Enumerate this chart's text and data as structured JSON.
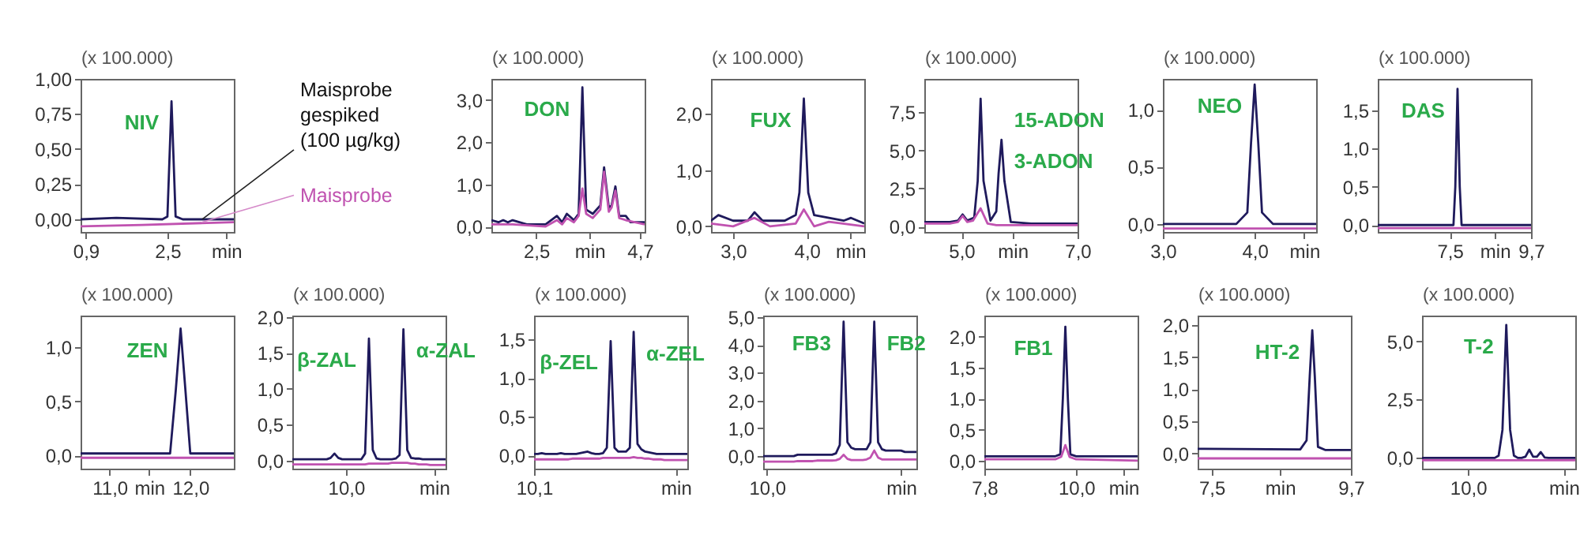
{
  "chart_data": [
    {
      "type": "line",
      "ylabel": "(x 100.000)",
      "xlim": [
        0.8,
        3.8
      ],
      "ylim": [
        -0.09,
        1.0
      ],
      "xticks": [
        {
          "value": 0.9,
          "label": "0,9"
        },
        {
          "value": 2.5,
          "label": "2,5"
        },
        {
          "value": 3.65,
          "label": "min"
        }
      ],
      "yticks": [
        {
          "value": 0,
          "label": "0,00"
        },
        {
          "value": 0.25,
          "label": "0,25"
        },
        {
          "value": 0.5,
          "label": "0,50"
        },
        {
          "value": 0.75,
          "label": "0,75"
        },
        {
          "value": 1,
          "label": "1,00"
        }
      ],
      "annotations": [
        "NIV"
      ],
      "series": [
        {
          "name": "Maisprobe\ngespiked\n(100 µg/kg)",
          "color": "#1f1a5c",
          "x": [
            0.8,
            1.5,
            2.4,
            2.5,
            2.58,
            2.66,
            2.8,
            3.8
          ],
          "values": [
            0.0,
            0.01,
            0.0,
            0.02,
            0.84,
            0.02,
            0.0,
            0.0
          ]
        },
        {
          "name": "Maisprobe",
          "color": "#c052b0",
          "x": [
            0.8,
            2.0,
            3.8
          ],
          "values": [
            -0.05,
            -0.04,
            -0.02
          ]
        }
      ]
    },
    {
      "type": "line",
      "ylabel": "(x 100.000)",
      "xlim": [
        1.55,
        4.8
      ],
      "ylim": [
        -0.13,
        3.5
      ],
      "xticks": [
        {
          "value": 2.5,
          "label": "2,5"
        },
        {
          "value": 3.63,
          "label": "min"
        },
        {
          "value": 4.7,
          "label": "4,7"
        }
      ],
      "yticks": [
        {
          "value": 0,
          "label": "0,0"
        },
        {
          "value": 1,
          "label": "1,0"
        },
        {
          "value": 2,
          "label": "2,0"
        },
        {
          "value": 3,
          "label": "3,0"
        }
      ],
      "annotations": [
        "DON"
      ],
      "series": [
        {
          "color": "#1f1a5c",
          "x": [
            1.55,
            1.7,
            1.8,
            1.9,
            2.0,
            2.3,
            2.7,
            2.94,
            3.05,
            3.15,
            3.3,
            3.4,
            3.48,
            3.56,
            3.7,
            3.86,
            3.94,
            4.04,
            4.1,
            4.18,
            4.26,
            4.4,
            4.5,
            4.8
          ],
          "values": [
            0.15,
            0.1,
            0.15,
            0.1,
            0.15,
            0.05,
            0.05,
            0.25,
            0.1,
            0.3,
            0.15,
            0.3,
            3.3,
            0.4,
            0.3,
            0.5,
            1.4,
            0.45,
            0.5,
            0.95,
            0.25,
            0.25,
            0.1,
            0.1
          ]
        },
        {
          "color": "#c052b0",
          "x": [
            1.55,
            2.0,
            2.7,
            2.94,
            3.05,
            3.15,
            3.3,
            3.4,
            3.48,
            3.56,
            3.7,
            3.86,
            3.94,
            4.04,
            4.1,
            4.18,
            4.26,
            4.4,
            4.8
          ],
          "values": [
            0.05,
            0.05,
            0.0,
            0.15,
            0.05,
            0.2,
            0.1,
            0.25,
            0.9,
            0.3,
            0.2,
            0.4,
            1.3,
            0.35,
            0.45,
            0.85,
            0.2,
            0.15,
            0.05
          ]
        }
      ]
    },
    {
      "type": "line",
      "ylabel": "(x 100.000)",
      "xlim": [
        2.7,
        4.78
      ],
      "ylim": [
        -0.1,
        2.62
      ],
      "xticks": [
        {
          "value": 3.0,
          "label": "3,0"
        },
        {
          "value": 4.0,
          "label": "4,0"
        },
        {
          "value": 4.59,
          "label": "min"
        }
      ],
      "yticks": [
        {
          "value": 0,
          "label": "0,0"
        },
        {
          "value": 1,
          "label": "1,0"
        },
        {
          "value": 2,
          "label": "2,0"
        }
      ],
      "annotations": [
        "FUX"
      ],
      "series": [
        {
          "color": "#1f1a5c",
          "x": [
            2.7,
            2.8,
            3.0,
            3.2,
            3.29,
            3.4,
            3.7,
            3.85,
            3.9,
            3.96,
            4.02,
            4.1,
            4.3,
            4.5,
            4.6,
            4.78
          ],
          "values": [
            0.1,
            0.2,
            0.1,
            0.1,
            0.25,
            0.1,
            0.1,
            0.2,
            0.6,
            2.27,
            0.6,
            0.2,
            0.15,
            0.1,
            0.15,
            0.05
          ]
        },
        {
          "color": "#c052b0",
          "x": [
            2.7,
            3.0,
            3.29,
            3.5,
            3.85,
            3.96,
            4.1,
            4.3,
            4.78
          ],
          "values": [
            0.05,
            0.0,
            0.15,
            0.0,
            0.05,
            0.3,
            0.0,
            0.08,
            0.0
          ]
        }
      ]
    },
    {
      "type": "line",
      "ylabel": "(x 100.000)",
      "xlim": [
        4.36,
        7.0
      ],
      "ylim": [
        -0.35,
        9.7
      ],
      "xticks": [
        {
          "value": 5.0,
          "label": "5,0"
        },
        {
          "value": 5.88,
          "label": "min"
        },
        {
          "value": 7.0,
          "label": "7,0"
        }
      ],
      "yticks": [
        {
          "value": 0,
          "label": "0,0"
        },
        {
          "value": 2.5,
          "label": "2,5"
        },
        {
          "value": 5,
          "label": "5,0"
        },
        {
          "value": 7.5,
          "label": "7,5"
        }
      ],
      "annotations": [
        "15-ADON",
        "3-ADON"
      ],
      "series": [
        {
          "color": "#1f1a5c",
          "x": [
            4.36,
            4.8,
            4.94,
            5.02,
            5.1,
            5.22,
            5.28,
            5.33,
            5.38,
            5.5,
            5.6,
            5.64,
            5.69,
            5.74,
            5.85,
            6.2,
            7.0
          ],
          "values": [
            0.3,
            0.3,
            0.4,
            0.8,
            0.4,
            0.6,
            3.0,
            8.4,
            3.0,
            0.4,
            1.0,
            3.5,
            5.7,
            3.0,
            0.3,
            0.2,
            0.2
          ]
        },
        {
          "color": "#c052b0",
          "x": [
            4.36,
            4.8,
            4.94,
            5.02,
            5.1,
            5.2,
            5.33,
            5.45,
            5.6,
            7.0
          ],
          "values": [
            0.2,
            0.2,
            0.3,
            0.7,
            0.3,
            0.4,
            1.2,
            0.2,
            0.1,
            0.1
          ]
        }
      ]
    },
    {
      "type": "line",
      "ylabel": "(x 100.000)",
      "xlim": [
        3.0,
        4.67
      ],
      "ylim": [
        -0.07,
        1.27
      ],
      "xticks": [
        {
          "value": 3.0,
          "label": "3,0"
        },
        {
          "value": 4.0,
          "label": "4,0"
        },
        {
          "value": 4.54,
          "label": "min"
        }
      ],
      "yticks": [
        {
          "value": 0,
          "label": "0,0"
        },
        {
          "value": 0.5,
          "label": "0,5"
        },
        {
          "value": 1,
          "label": "1,0"
        }
      ],
      "annotations": [
        "NEO"
      ],
      "series": [
        {
          "color": "#1f1a5c",
          "x": [
            3.0,
            3.8,
            3.92,
            3.96,
            4.0,
            4.04,
            4.08,
            4.2,
            4.67
          ],
          "values": [
            0.0,
            0.0,
            0.1,
            0.7,
            1.22,
            0.7,
            0.1,
            0.0,
            0.0
          ]
        },
        {
          "color": "#c052b0",
          "x": [
            3.0,
            4.67
          ],
          "values": [
            -0.04,
            -0.04
          ]
        }
      ]
    },
    {
      "type": "line",
      "ylabel": "(x 100.000)",
      "xlim": [
        5.55,
        9.7
      ],
      "ylim": [
        -0.09,
        1.91
      ],
      "xticks": [
        {
          "value": 7.5,
          "label": "7,5"
        },
        {
          "value": 8.72,
          "label": "min"
        },
        {
          "value": 9.7,
          "label": "9,7"
        }
      ],
      "yticks": [
        {
          "value": 0,
          "label": "0,0"
        },
        {
          "value": 0.5,
          "label": "0,5"
        },
        {
          "value": 1,
          "label": "1,0"
        },
        {
          "value": 1.5,
          "label": "1,5"
        }
      ],
      "annotations": [
        "DAS"
      ],
      "series": [
        {
          "color": "#1f1a5c",
          "x": [
            5.55,
            7.6,
            7.65,
            7.71,
            7.77,
            7.82,
            9.7
          ],
          "values": [
            0.0,
            0.0,
            0.5,
            1.78,
            0.5,
            0.0,
            0.0
          ]
        },
        {
          "color": "#c052b0",
          "x": [
            5.55,
            9.7
          ],
          "values": [
            -0.04,
            -0.04
          ]
        }
      ]
    },
    {
      "type": "line",
      "ylabel": "(x 100.000)",
      "xlim": [
        10.64,
        12.54
      ],
      "ylim": [
        -0.12,
        1.29
      ],
      "xticks": [
        {
          "value": 11.0,
          "label": "11,0"
        },
        {
          "value": 11.49,
          "label": "min"
        },
        {
          "value": 12.0,
          "label": "12,0"
        }
      ],
      "yticks": [
        {
          "value": 0,
          "label": "0,0"
        },
        {
          "value": 0.5,
          "label": "0,5"
        },
        {
          "value": 1,
          "label": "1,0"
        }
      ],
      "annotations": [
        "ZEN"
      ],
      "series": [
        {
          "color": "#1f1a5c",
          "x": [
            10.64,
            11.75,
            11.82,
            11.88,
            11.94,
            12.0,
            12.54
          ],
          "values": [
            0.02,
            0.02,
            0.6,
            1.17,
            0.6,
            0.02,
            0.02
          ]
        },
        {
          "color": "#c052b0",
          "x": [
            10.64,
            12.54
          ],
          "values": [
            -0.02,
            -0.02
          ]
        }
      ]
    },
    {
      "type": "line",
      "ylabel": "(x 100.000)",
      "categories": [
        null,
        null,
        null,
        null,
        null,
        null,
        null,
        null,
        null,
        null,
        null,
        null,
        null,
        null,
        "10,0",
        null,
        null,
        null,
        null,
        null,
        null,
        null,
        null,
        null,
        null,
        null,
        null,
        null,
        null,
        null,
        null,
        null,
        null,
        null,
        null,
        null,
        null,
        "min",
        null,
        null,
        null
      ],
      "ylim": [
        -0.11,
        2.02
      ],
      "yticks": [
        {
          "value": 0,
          "label": "0,0"
        },
        {
          "value": 0.5,
          "label": "0,5"
        },
        {
          "value": 1,
          "label": "1,0"
        },
        {
          "value": 1.5,
          "label": "1,5"
        },
        {
          "value": 2,
          "label": "2,0"
        }
      ],
      "annotations": [
        "β-ZAL",
        "α-ZAL"
      ],
      "series": [
        {
          "color": "#1f1a5c",
          "values": [
            0.02,
            0.02,
            0.02,
            0.02,
            0.02,
            0.02,
            0.02,
            0.02,
            0.02,
            0.02,
            0.04,
            0.1,
            0.04,
            0.02,
            0.02,
            0.02,
            0.02,
            0.02,
            0.02,
            0.1,
            1.7,
            0.15,
            0.03,
            0.02,
            0.02,
            0.02,
            0.02,
            0.03,
            0.08,
            1.83,
            0.15,
            0.04,
            0.03,
            0.03,
            0.02,
            0.02,
            0.02,
            0.02,
            0.02,
            0.02,
            0.02
          ]
        },
        {
          "color": "#c052b0",
          "values": [
            -0.05,
            -0.05,
            -0.05,
            -0.05,
            -0.05,
            -0.05,
            -0.05,
            -0.05,
            -0.05,
            -0.05,
            -0.05,
            -0.05,
            -0.05,
            -0.05,
            -0.05,
            -0.05,
            -0.05,
            -0.05,
            -0.05,
            -0.05,
            -0.04,
            -0.04,
            -0.04,
            -0.04,
            -0.04,
            -0.04,
            -0.03,
            -0.03,
            -0.03,
            -0.03,
            -0.03,
            -0.04,
            -0.04,
            -0.05,
            -0.05,
            -0.05,
            -0.06,
            -0.06,
            -0.06,
            -0.06,
            -0.06
          ]
        }
      ]
    },
    {
      "type": "line",
      "ylabel": "(x 100.000)",
      "categories": [
        "10,1",
        null,
        null,
        null,
        null,
        null,
        null,
        null,
        null,
        null,
        null,
        null,
        null,
        null,
        null,
        null,
        null,
        null,
        null,
        null,
        null,
        null,
        null,
        null,
        null,
        null,
        null,
        null,
        null,
        null,
        null,
        null,
        null,
        null,
        null,
        null,
        null,
        "min",
        null,
        null,
        null
      ],
      "ylim": [
        -0.17,
        1.81
      ],
      "yticks": [
        {
          "value": 0,
          "label": "0,0"
        },
        {
          "value": 0.5,
          "label": "0,5"
        },
        {
          "value": 1,
          "label": "1,0"
        },
        {
          "value": 1.5,
          "label": "1,5"
        }
      ],
      "annotations": [
        "β-ZEL",
        "α-ZEL"
      ],
      "series": [
        {
          "color": "#1f1a5c",
          "values": [
            0.02,
            0.02,
            0.03,
            0.02,
            0.02,
            0.02,
            0.02,
            0.03,
            0.02,
            0.02,
            0.02,
            0.02,
            0.03,
            0.04,
            0.05,
            0.03,
            0.02,
            0.02,
            0.03,
            0.1,
            1.48,
            0.1,
            0.05,
            0.05,
            0.05,
            0.1,
            1.6,
            0.15,
            0.08,
            0.05,
            0.04,
            0.03,
            0.02,
            0.02,
            0.02,
            0.02,
            0.02,
            0.02,
            0.02,
            0.02,
            0.02
          ]
        },
        {
          "color": "#c052b0",
          "values": [
            -0.05,
            -0.05,
            -0.05,
            -0.05,
            -0.05,
            -0.05,
            -0.05,
            -0.05,
            -0.05,
            -0.05,
            -0.04,
            -0.04,
            -0.04,
            -0.04,
            -0.04,
            -0.04,
            -0.04,
            -0.04,
            -0.03,
            -0.03,
            -0.03,
            -0.03,
            -0.03,
            -0.03,
            -0.03,
            -0.03,
            -0.02,
            -0.03,
            -0.03,
            -0.04,
            -0.04,
            -0.05,
            -0.05,
            -0.05,
            -0.06,
            -0.06,
            -0.06,
            -0.06,
            -0.06,
            -0.06,
            -0.06
          ]
        }
      ]
    },
    {
      "type": "line",
      "ylabel": "(x 100.000)",
      "categories": [
        null,
        "10,0",
        null,
        null,
        null,
        null,
        null,
        null,
        null,
        null,
        null,
        null,
        null,
        null,
        null,
        null,
        null,
        null,
        null,
        null,
        null,
        null,
        null,
        null,
        null,
        null,
        null,
        null,
        null,
        null,
        null,
        null,
        null,
        null,
        null,
        null,
        "min",
        null,
        null,
        null,
        null
      ],
      "ylim": [
        -0.45,
        5.05
      ],
      "yticks": [
        {
          "value": 0,
          "label": "0,0"
        },
        {
          "value": 1,
          "label": "1,0"
        },
        {
          "value": 2,
          "label": "2,0"
        },
        {
          "value": 3,
          "label": "3,0"
        },
        {
          "value": 4,
          "label": "4,0"
        },
        {
          "value": 5,
          "label": "5,0"
        }
      ],
      "annotations": [
        "FB3",
        "FB2"
      ],
      "series": [
        {
          "color": "#1f1a5c",
          "values": [
            0.0,
            0.0,
            0.0,
            0.0,
            0.0,
            0.0,
            0.0,
            0.0,
            0.0,
            0.05,
            0.05,
            0.05,
            0.05,
            0.05,
            0.05,
            0.05,
            0.05,
            0.05,
            0.05,
            0.1,
            0.4,
            4.83,
            0.5,
            0.3,
            0.25,
            0.25,
            0.25,
            0.25,
            0.5,
            4.83,
            0.5,
            0.25,
            0.2,
            0.2,
            0.2,
            0.2,
            0.2,
            0.15,
            0.15,
            0.15,
            0.15
          ]
        },
        {
          "color": "#c052b0",
          "values": [
            -0.2,
            -0.2,
            -0.2,
            -0.2,
            -0.2,
            -0.2,
            -0.2,
            -0.2,
            -0.2,
            -0.18,
            -0.18,
            -0.18,
            -0.18,
            -0.18,
            -0.16,
            -0.16,
            -0.16,
            -0.16,
            -0.16,
            -0.15,
            -0.1,
            0.05,
            -0.1,
            -0.14,
            -0.14,
            -0.14,
            -0.14,
            -0.12,
            -0.05,
            0.2,
            -0.05,
            -0.12,
            -0.12,
            -0.12,
            -0.12,
            -0.12,
            -0.12,
            -0.12,
            -0.12,
            -0.12,
            -0.12
          ]
        }
      ]
    },
    {
      "type": "line",
      "ylabel": "(x 100.000)",
      "xlim": [
        7.8,
        11.47
      ],
      "ylim": [
        -0.13,
        2.34
      ],
      "xticks": [
        {
          "value": 7.8,
          "label": "7,8"
        },
        {
          "value": 10.0,
          "label": "10,0"
        },
        {
          "value": 11.13,
          "label": "min"
        }
      ],
      "yticks": [
        {
          "value": 0,
          "label": "0,0"
        },
        {
          "value": 0.5,
          "label": "0,5"
        },
        {
          "value": 1,
          "label": "1,0"
        },
        {
          "value": 1.5,
          "label": "1,5"
        },
        {
          "value": 2,
          "label": "2,0"
        }
      ],
      "annotations": [
        "FB1"
      ],
      "series": [
        {
          "color": "#1f1a5c",
          "x": [
            7.8,
            9.5,
            9.62,
            9.68,
            9.74,
            9.8,
            9.86,
            10.0,
            11.47
          ],
          "values": [
            0.07,
            0.07,
            0.1,
            1.0,
            2.16,
            1.0,
            0.1,
            0.07,
            0.07
          ]
        },
        {
          "color": "#c052b0",
          "x": [
            7.8,
            9.5,
            9.64,
            9.74,
            9.84,
            10.0,
            11.47
          ],
          "values": [
            0.02,
            0.02,
            0.06,
            0.25,
            0.06,
            0.02,
            0.0
          ]
        }
      ]
    },
    {
      "type": "line",
      "ylabel": "(x 100.000)",
      "xlim": [
        7.28,
        9.7
      ],
      "ylim": [
        -0.24,
        2.15
      ],
      "xticks": [
        {
          "value": 7.5,
          "label": "7,5"
        },
        {
          "value": 8.58,
          "label": "min"
        },
        {
          "value": 9.7,
          "label": "9,7"
        }
      ],
      "yticks": [
        {
          "value": 0,
          "label": "0,0"
        },
        {
          "value": 0.5,
          "label": "0,5"
        },
        {
          "value": 1,
          "label": "1,0"
        },
        {
          "value": 1.5,
          "label": "1,5"
        },
        {
          "value": 2,
          "label": "2,0"
        }
      ],
      "annotations": [
        "HT-2"
      ],
      "series": [
        {
          "color": "#1f1a5c",
          "x": [
            7.28,
            8.9,
            9.0,
            9.05,
            9.09,
            9.13,
            9.18,
            9.3,
            9.7
          ],
          "values": [
            0.07,
            0.06,
            0.2,
            1.2,
            1.92,
            1.2,
            0.1,
            0.05,
            0.05
          ]
        },
        {
          "color": "#c052b0",
          "x": [
            7.28,
            9.7
          ],
          "values": [
            -0.08,
            -0.08
          ]
        }
      ]
    },
    {
      "type": "line",
      "ylabel": "(x 100.000)",
      "categories": [
        null,
        null,
        null,
        null,
        null,
        null,
        null,
        null,
        null,
        null,
        null,
        null,
        "10,0",
        null,
        null,
        null,
        null,
        null,
        null,
        null,
        null,
        null,
        null,
        null,
        null,
        null,
        null,
        null,
        null,
        null,
        null,
        null,
        null,
        null,
        null,
        null,
        null,
        "min",
        null,
        null,
        null
      ],
      "ylim": [
        -0.46,
        6.1
      ],
      "yticks": [
        {
          "value": 0,
          "label": "0,0"
        },
        {
          "value": 2.5,
          "label": "2,5"
        },
        {
          "value": 5,
          "label": "5,0"
        }
      ],
      "annotations": [
        "T-2"
      ],
      "series": [
        {
          "color": "#1f1a5c",
          "values": [
            0.0,
            0.0,
            0.0,
            0.0,
            0.0,
            0.0,
            0.0,
            0.0,
            0.0,
            0.0,
            0.0,
            0.0,
            0.0,
            0.0,
            0.0,
            0.0,
            0.0,
            0.0,
            0.0,
            0.0,
            0.1,
            1.2,
            5.7,
            1.2,
            0.1,
            0.0,
            0.0,
            0.05,
            0.35,
            0.05,
            0.05,
            0.25,
            0.02,
            0.0,
            0.0,
            0.0,
            0.0,
            0.0,
            0.0,
            0.0,
            0.0
          ]
        },
        {
          "color": "#c052b0",
          "values": [
            -0.1,
            -0.1,
            -0.1,
            -0.1,
            -0.1,
            -0.1,
            -0.1,
            -0.1,
            -0.1,
            -0.1,
            -0.1,
            -0.1,
            -0.1,
            -0.1,
            -0.1,
            -0.1,
            -0.1,
            -0.1,
            -0.1,
            -0.1,
            -0.1,
            -0.1,
            -0.1,
            -0.1,
            -0.1,
            -0.1,
            -0.1,
            -0.1,
            -0.1,
            -0.1,
            -0.1,
            -0.1,
            -0.1,
            -0.1,
            -0.1,
            -0.1,
            -0.1,
            -0.1,
            -0.1,
            -0.1,
            -0.1
          ]
        }
      ]
    }
  ]
}
